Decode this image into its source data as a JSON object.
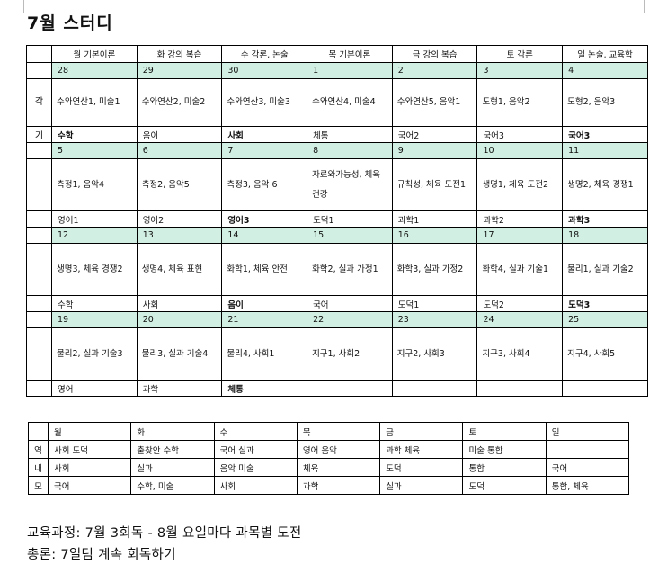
{
  "title": "7월 스터디",
  "calendar": {
    "side_labels": [
      "각",
      "기"
    ],
    "headers": [
      "월 기본이론",
      "화 강의 복습",
      "수 각론, 논술",
      "목 기본이론",
      "금 강의 복습",
      "토 각론",
      "일 논술, 교육학"
    ],
    "weeks": [
      {
        "dates": [
          "28",
          "29",
          "30",
          "1",
          "2",
          "3",
          "4"
        ],
        "tasks": [
          "수와연산1, 미술1",
          "수와연산2, 미술2",
          "수와연산3, 미술3",
          "수와연산4, 미술4",
          "수와연산5, 음악1",
          "도형1, 음악2",
          "도형2, 음악3"
        ],
        "subjects": [
          "수학",
          "음이",
          "사회",
          "체통",
          "국어2",
          "국어3",
          "국어3"
        ]
      },
      {
        "dates": [
          "5",
          "6",
          "7",
          "8",
          "9",
          "10",
          "11"
        ],
        "tasks": [
          "측정1, 음악4",
          "측정2, 음악5",
          "측정3, 음악 6",
          "자료와가능성, 체육 건강",
          "규칙성, 체육 도전1",
          "생명1, 체육 도전2",
          "생명2, 체육 경쟁1"
        ],
        "subjects": [
          "영어1",
          "영어2",
          "영어3",
          "도덕1",
          "과학1",
          "과학2",
          "과학3"
        ]
      },
      {
        "dates": [
          "12",
          "13",
          "14",
          "15",
          "16",
          "17",
          "18"
        ],
        "tasks": [
          "생명3, 체육 경쟁2",
          "생명4, 체육 표현",
          "화학1, 체육 안전",
          "화학2, 실과 가정1",
          "화학3, 실과 가정2",
          "화학4, 실과 기술1",
          "물리1, 실과 기술2"
        ],
        "subjects": [
          "수학",
          "사회",
          "음이",
          "국어",
          "도덕1",
          "도덕2",
          "도덕3"
        ]
      },
      {
        "dates": [
          "19",
          "20",
          "21",
          "22",
          "23",
          "24",
          "25"
        ],
        "tasks": [
          "물리2, 실과 기술3",
          "물리3, 실과 기술4",
          "물리4, 사회1",
          "지구1, 사회2",
          "지구2, 사회3",
          "지구3, 사회4",
          "지구4, 사회5"
        ],
        "subjects": [
          "영어",
          "과학",
          "체통",
          "",
          "",
          "",
          ""
        ]
      }
    ]
  },
  "subject_table": {
    "days": [
      "월",
      "화",
      "수",
      "목",
      "금",
      "토",
      "일"
    ],
    "rows": [
      {
        "label": "역",
        "cells": [
          "사회 도덕",
          "출찾안 수학",
          "국어 실과",
          "영어 음악",
          "과학 체육",
          "미술 통합",
          ""
        ]
      },
      {
        "label": "내",
        "cells": [
          "사회",
          "실과",
          "음악 미술",
          "체육",
          "도덕",
          "통합",
          "국어"
        ]
      },
      {
        "label": "모",
        "cells": [
          "국어",
          "수학, 미술",
          "사회",
          "과학",
          "실과",
          "도덕",
          "통합, 체육"
        ]
      }
    ]
  },
  "summary": [
    "교육과정: 7월 3회독 - 8월 요일마다 과목별 도전",
    "총론: 7일텀 계속 회독하기"
  ]
}
